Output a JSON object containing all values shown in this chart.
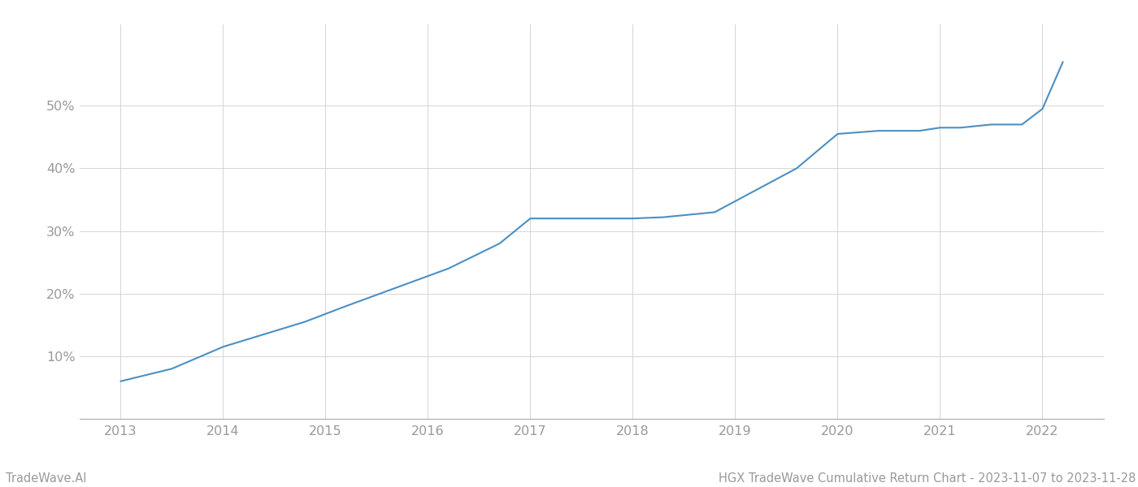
{
  "x_years": [
    2013.0,
    2013.5,
    2014.0,
    2014.3,
    2014.8,
    2015.2,
    2015.7,
    2016.2,
    2016.7,
    2017.0,
    2017.2,
    2017.5,
    2018.0,
    2018.3,
    2018.8,
    2019.2,
    2019.6,
    2020.0,
    2020.4,
    2020.8,
    2021.0,
    2021.2,
    2021.5,
    2021.8,
    2022.0,
    2022.2
  ],
  "y_values": [
    6.0,
    8.0,
    11.5,
    13.0,
    15.5,
    18.0,
    21.0,
    24.0,
    28.0,
    32.0,
    32.0,
    32.0,
    32.0,
    32.2,
    33.0,
    36.5,
    40.0,
    45.5,
    46.0,
    46.0,
    46.5,
    46.5,
    47.0,
    47.0,
    49.5,
    57.0
  ],
  "line_color": "#4a90c4",
  "line_width": 1.5,
  "background_color": "#ffffff",
  "grid_color": "#d5d5d5",
  "xlabel_years": [
    2013,
    2014,
    2015,
    2016,
    2017,
    2018,
    2019,
    2020,
    2021,
    2022
  ],
  "yticks": [
    10,
    20,
    30,
    40,
    50
  ],
  "ylim": [
    0,
    63
  ],
  "xlim": [
    2012.6,
    2022.6
  ],
  "title_text": "HGX TradeWave Cumulative Return Chart - 2023-11-07 to 2023-11-28",
  "watermark_text": "TradeWave.AI",
  "title_fontsize": 10.5,
  "watermark_fontsize": 10.5,
  "tick_label_color": "#999999",
  "spine_bottom_color": "#aaaaaa"
}
